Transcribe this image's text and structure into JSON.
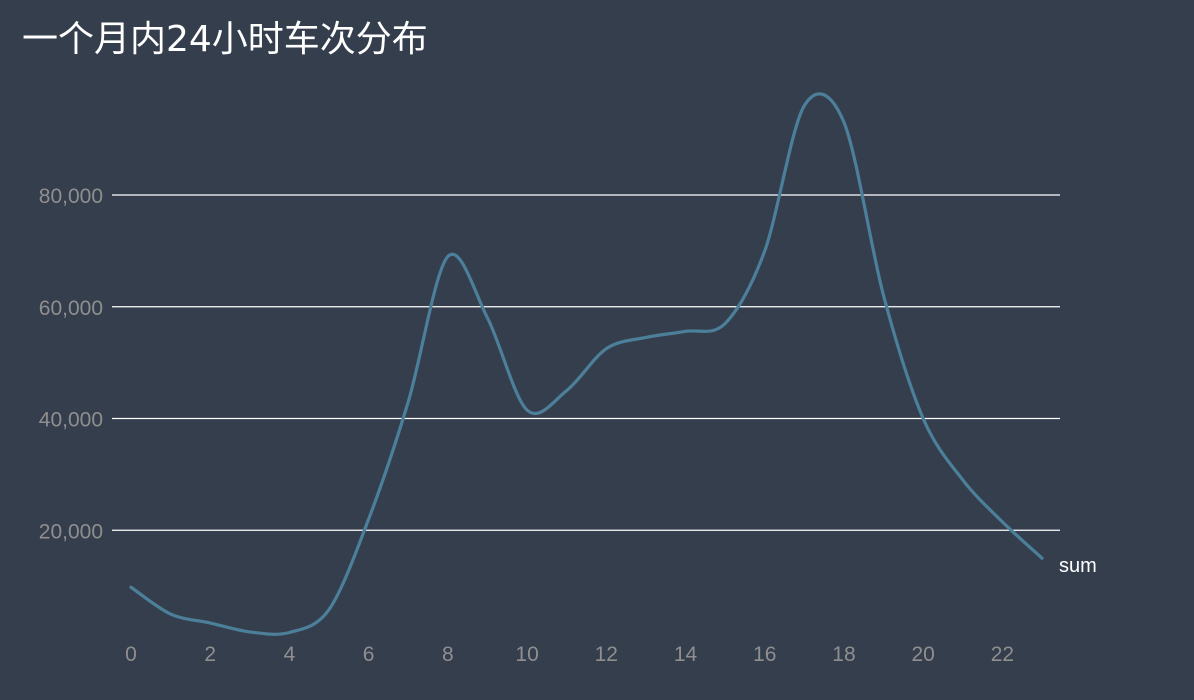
{
  "colors": {
    "background": "#353e4d",
    "grid": "#ffffff",
    "line": "#4c7f9a",
    "tick_text": "#8f8f8f",
    "title_text": "#ffffff"
  },
  "chart_data": {
    "type": "line",
    "title": "一个月内24小时车次分布",
    "xlabel": "",
    "ylabel": "",
    "x": [
      0,
      1,
      2,
      3,
      4,
      5,
      6,
      7,
      8,
      9,
      10,
      11,
      12,
      13,
      14,
      15,
      16,
      17,
      18,
      19,
      20,
      21,
      22,
      23
    ],
    "x_ticks": [
      "0",
      "2",
      "4",
      "6",
      "8",
      "10",
      "12",
      "14",
      "16",
      "18",
      "20",
      "22"
    ],
    "y_ticks": [
      "20,000",
      "40,000",
      "60,000",
      "80,000"
    ],
    "y_tick_values": [
      20000,
      40000,
      60000,
      80000
    ],
    "ylim": [
      0,
      100000
    ],
    "xlim": [
      0,
      23
    ],
    "grid": true,
    "legend": "inline-end",
    "series": [
      {
        "name": "sum",
        "values": [
          9800,
          5000,
          3400,
          1800,
          1700,
          5800,
          22000,
          43000,
          69000,
          58000,
          41500,
          45000,
          52500,
          54500,
          55600,
          57000,
          70000,
          96000,
          93000,
          62000,
          40000,
          29000,
          21500,
          15000
        ]
      }
    ]
  }
}
